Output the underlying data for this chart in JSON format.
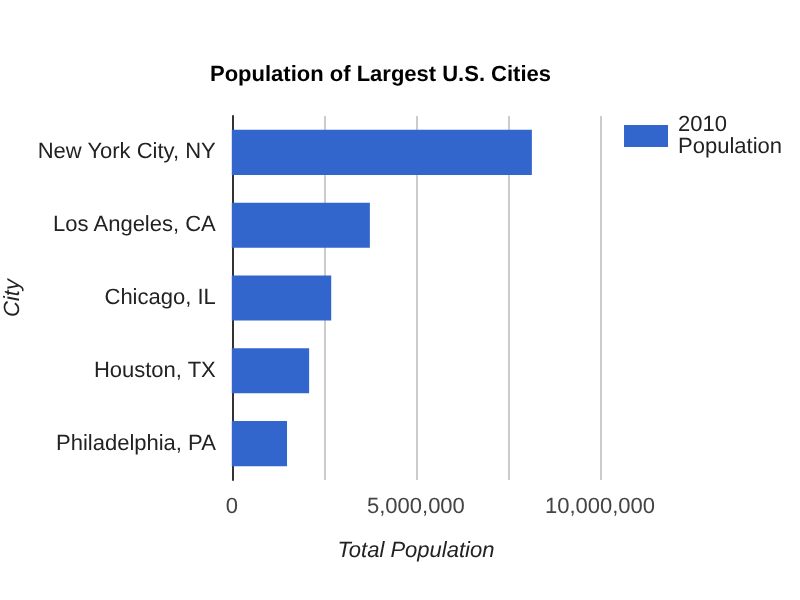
{
  "chart_data": {
    "type": "bar",
    "orientation": "horizontal",
    "title": "Population of Largest U.S. Cities",
    "xlabel": "Total Population",
    "ylabel": "City",
    "categories": [
      "New York City, NY",
      "Los Angeles, CA",
      "Chicago, IL",
      "Houston, TX",
      "Philadelphia, PA"
    ],
    "series": [
      {
        "name": "2010 Population",
        "color": "#3366cc",
        "values": [
          8150000,
          3750000,
          2700000,
          2100000,
          1500000
        ]
      }
    ],
    "xlim": [
      0,
      10000000
    ],
    "xticks": [
      0,
      {
        "value": 2500000,
        "label": null
      },
      {
        "value": 5000000,
        "label": "5,000,000"
      },
      {
        "value": 7500000,
        "label": null
      },
      {
        "value": 10000000,
        "label": "10,000,000"
      }
    ],
    "grid": "x",
    "legend": "top right"
  }
}
